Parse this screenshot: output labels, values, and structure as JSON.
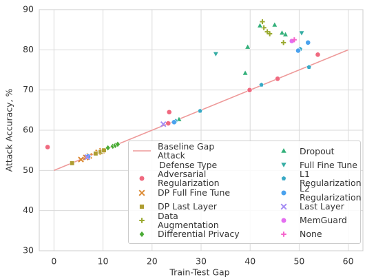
{
  "chart_data": {
    "type": "scatter",
    "xlabel": "Train-Test Gap",
    "ylabel": "Attack Accuracy, %",
    "xlim": [
      -3,
      63
    ],
    "ylim": [
      30,
      90
    ],
    "xticks": [
      0,
      10,
      20,
      30,
      40,
      50,
      60
    ],
    "yticks": [
      30,
      40,
      50,
      60,
      70,
      80,
      90
    ],
    "grid": true,
    "legend": "lower right",
    "legend_title": "Defense Type",
    "baseline": {
      "name": "Baseline Gap Attack",
      "color": "#ee9a9a",
      "x": [
        0,
        60
      ],
      "values": [
        50,
        80
      ]
    },
    "series": [
      {
        "name": "Adversarial Regularization",
        "color": "#f0697f",
        "marker": "circle",
        "x": [
          -1.3,
          23.5,
          23.3,
          39.9,
          45.6,
          53.8
        ],
        "values": [
          55.8,
          64.5,
          61.7,
          70.0,
          72.8,
          78.8
        ]
      },
      {
        "name": "DP Full Fine Tune",
        "color": "#dc8932",
        "marker": "x",
        "x": [
          5.5,
          6.5,
          7.2,
          9.0,
          9.8
        ],
        "values": [
          52.7,
          53.2,
          53.6,
          54.5,
          54.9
        ]
      },
      {
        "name": "DP Last Layer",
        "color": "#ae9d31",
        "marker": "square",
        "x": [
          3.7,
          8.5,
          9.5,
          10.2
        ],
        "values": [
          51.8,
          54.2,
          54.6,
          55.0
        ]
      },
      {
        "name": "Data Augmentation",
        "color": "#9aa92f",
        "marker": "plus",
        "x": [
          42.5,
          42.8,
          43.5,
          44.0,
          46.8
        ],
        "values": [
          87.0,
          85.5,
          84.5,
          84.0,
          81.8
        ]
      },
      {
        "name": "Differential Privacy",
        "color": "#4aab35",
        "marker": "diamond",
        "x": [
          11.0,
          12.0,
          12.5,
          13.0
        ],
        "values": [
          55.6,
          56.0,
          56.2,
          56.5
        ]
      },
      {
        "name": "Dropout",
        "color": "#33b07a",
        "marker": "triangle",
        "x": [
          42.0,
          45.0,
          46.5,
          47.2,
          39.5,
          39.0,
          25.5
        ],
        "values": [
          86.0,
          86.2,
          84.2,
          83.8,
          80.7,
          74.2,
          62.7
        ]
      },
      {
        "name": "Full Fine Tune",
        "color": "#36ada4",
        "marker": "triangle-down",
        "x": [
          33.0,
          50.5
        ],
        "values": [
          79.0,
          84.2
        ]
      },
      {
        "name": "L1 Regularization",
        "color": "#38a9c5",
        "marker": "pentagon",
        "x": [
          29.8,
          42.3,
          52.0,
          50.2,
          24.8
        ],
        "values": [
          64.8,
          71.3,
          75.7,
          80.2,
          62.3
        ]
      },
      {
        "name": "L2 Regularization",
        "color": "#4aa2ee",
        "marker": "circle",
        "x": [
          49.8,
          51.8,
          24.5,
          7.0
        ],
        "values": [
          79.8,
          81.8,
          62.0,
          53.5
        ]
      },
      {
        "name": "Last Layer",
        "color": "#a48cf4",
        "marker": "x",
        "x": [
          22.3,
          6.8
        ],
        "values": [
          61.5,
          53.3
        ]
      },
      {
        "name": "MemGuard",
        "color": "#e46ef0",
        "marker": "circle",
        "x": [
          48.5
        ],
        "values": [
          82.2
        ]
      },
      {
        "name": "None",
        "color": "#f565cc",
        "marker": "plus",
        "x": [
          49.0
        ],
        "values": [
          82.5
        ]
      }
    ]
  }
}
